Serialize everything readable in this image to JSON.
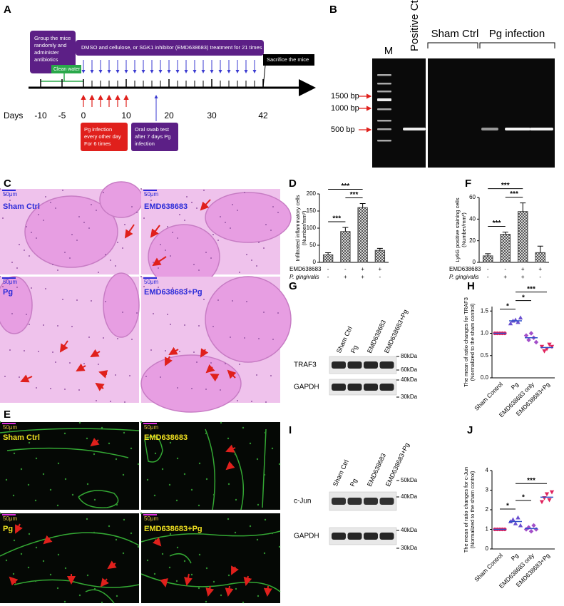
{
  "panel_labels": [
    "A",
    "B",
    "C",
    "D",
    "E",
    "F",
    "G",
    "H",
    "I",
    "J"
  ],
  "timeline": {
    "group_box": [
      "Group the mice",
      "randomly and",
      "administer",
      "antibiotics"
    ],
    "clean_water": "Clean water",
    "treatment_box": "DMSO and cellulose, or SGK1 inhibitor (EMD638683) treatment for 21 times",
    "sacrifice": "Sacrifice the mice",
    "axis_label": "Days",
    "xlim": [
      -10,
      42
    ],
    "xticks": [
      -10,
      -5,
      0,
      10,
      20,
      30,
      42
    ],
    "infection_box": [
      "Pg infection",
      "every other day",
      "For 6 times"
    ],
    "swab_box": [
      "Oral swab test",
      "after 7 days Pg",
      "infection"
    ]
  },
  "gel": {
    "lanes": [
      "M",
      "Positive Ctrl"
    ],
    "groups": [
      "Sham Ctrl",
      "Pg infection"
    ],
    "markers": [
      "1500 bp",
      "1000 bp",
      "500 bp"
    ]
  },
  "histology": {
    "panels": [
      "Sham Ctrl",
      "EMD638683",
      "Pg",
      "EMD638683+Pg"
    ],
    "scale_bar": "50μm"
  },
  "fluorescence": {
    "panels": [
      "Sham Ctrl",
      "EMD638683",
      "Pg",
      "EMD638683+Pg"
    ],
    "scale_bar": "50μm"
  },
  "blots": [
    {
      "lanes": [
        "Sham Ctrl",
        "Pg",
        "EMD638683",
        "EMD638683+Pg"
      ],
      "proteins": [
        "TRAF3",
        "GAPDH"
      ],
      "markers": [
        "80kDa",
        "60kDa",
        "40kDa",
        "30kDa"
      ]
    },
    {
      "lanes": [
        "Sham Ctrl",
        "Pg",
        "EMD638683",
        "EMD638683+Pg"
      ],
      "proteins": [
        "c-Jun",
        "GAPDH"
      ],
      "markers": [
        "50kDa",
        "40kDa",
        "40kDa",
        "30kDa"
      ]
    }
  ],
  "chart_data": [
    {
      "type": "bar",
      "ylabel": [
        "Infiltrated inflammatory cells",
        "(Number/mm²)"
      ],
      "values": [
        22,
        90,
        160,
        35
      ],
      "errors": [
        6,
        12,
        12,
        6
      ],
      "ylim": [
        0,
        200
      ],
      "yticks": [
        0,
        50,
        100,
        150,
        200
      ],
      "color": "#444444",
      "rows": [
        {
          "name": "EMD638683",
          "signs": [
            "-",
            "-",
            "+",
            "+"
          ]
        },
        {
          "name": "P. gingivalis",
          "signs": [
            "-",
            "+",
            "+",
            "-"
          ]
        }
      ],
      "significance": [
        {
          "label": "***",
          "groups": [
            0,
            1
          ]
        },
        {
          "label": "***",
          "groups": [
            1,
            2
          ]
        },
        {
          "label": "***",
          "groups": [
            0,
            2
          ]
        }
      ]
    },
    {
      "type": "bar",
      "ylabel": [
        "Ly6G positive staining cells",
        "(Number/mm²)"
      ],
      "values": [
        6,
        26,
        47,
        9
      ],
      "errors": [
        2,
        2,
        8,
        6
      ],
      "ylim": [
        0,
        60
      ],
      "yticks": [
        0,
        20,
        40,
        60
      ],
      "color": "#444444",
      "rows": [
        {
          "name": "EMD638683",
          "signs": [
            "-",
            "-",
            "+",
            "+"
          ]
        },
        {
          "name": "P. gingivalis",
          "signs": [
            "-",
            "+",
            "+",
            "-"
          ]
        }
      ],
      "significance": [
        {
          "label": "***",
          "groups": [
            0,
            1
          ]
        },
        {
          "label": "***",
          "groups": [
            1,
            2
          ]
        },
        {
          "label": "***",
          "groups": [
            0,
            2
          ]
        }
      ]
    },
    {
      "type": "strip",
      "ylabel": [
        "The mean of ratio changes for TRAF3",
        "(Normalized to the sham control)"
      ],
      "ylim": [
        0,
        1.6
      ],
      "yticks": [
        {
          "value": 0,
          "label": "0.0"
        },
        {
          "value": 0.5,
          "label": "0.5"
        },
        {
          "value": 1,
          "label": "1.0"
        },
        {
          "value": 1.5,
          "label": "1.5"
        }
      ],
      "series": [
        {
          "name": "Sham Control",
          "color": "#e0245e",
          "marker": "circle",
          "values": [
            1,
            1,
            1,
            1,
            1
          ]
        },
        {
          "name": "Pg",
          "color": "#6a4fd0",
          "marker": "triangle",
          "values": [
            1.22,
            1.28,
            1.3,
            1.25,
            1.35
          ]
        },
        {
          "name": "EMD638683 only",
          "color": "#a34fc9",
          "marker": "diamond",
          "values": [
            0.95,
            0.85,
            1.0,
            0.9,
            0.8
          ]
        },
        {
          "name": "EMD638683+Pg",
          "color": "#e0245e",
          "marker": "triangle-down",
          "values": [
            0.7,
            0.6,
            0.65,
            0.75,
            0.7
          ]
        }
      ],
      "significance": [
        {
          "label": "*",
          "groups": [
            0,
            1
          ]
        },
        {
          "label": "*",
          "groups": [
            1,
            2
          ]
        },
        {
          "label": "***",
          "groups": [
            1,
            3
          ]
        }
      ]
    },
    {
      "type": "strip",
      "ylabel": [
        "The mean of ratio changes for c-Jun",
        "(Normalized to the sham control)"
      ],
      "ylim": [
        0,
        4
      ],
      "yticks": [
        0,
        1,
        2,
        3,
        4
      ],
      "series": [
        {
          "name": "Sham Control",
          "color": "#e0245e",
          "marker": "circle",
          "values": [
            1,
            1,
            1,
            1,
            1
          ]
        },
        {
          "name": "Pg",
          "color": "#6a4fd0",
          "marker": "triangle",
          "values": [
            1.4,
            1.5,
            1.3,
            1.6,
            1.2
          ]
        },
        {
          "name": "EMD638683 only",
          "color": "#a34fc9",
          "marker": "diamond",
          "values": [
            1.0,
            1.1,
            0.9,
            1.2,
            1.0
          ]
        },
        {
          "name": "EMD638683+Pg",
          "color": "#e0245e",
          "marker": "triangle-down",
          "values": [
            2.4,
            2.6,
            2.8,
            2.5,
            2.9
          ]
        }
      ],
      "significance": [
        {
          "label": "*",
          "groups": [
            0,
            1
          ]
        },
        {
          "label": "*",
          "groups": [
            1,
            2
          ]
        },
        {
          "label": "***",
          "groups": [
            1,
            3
          ]
        }
      ]
    }
  ]
}
